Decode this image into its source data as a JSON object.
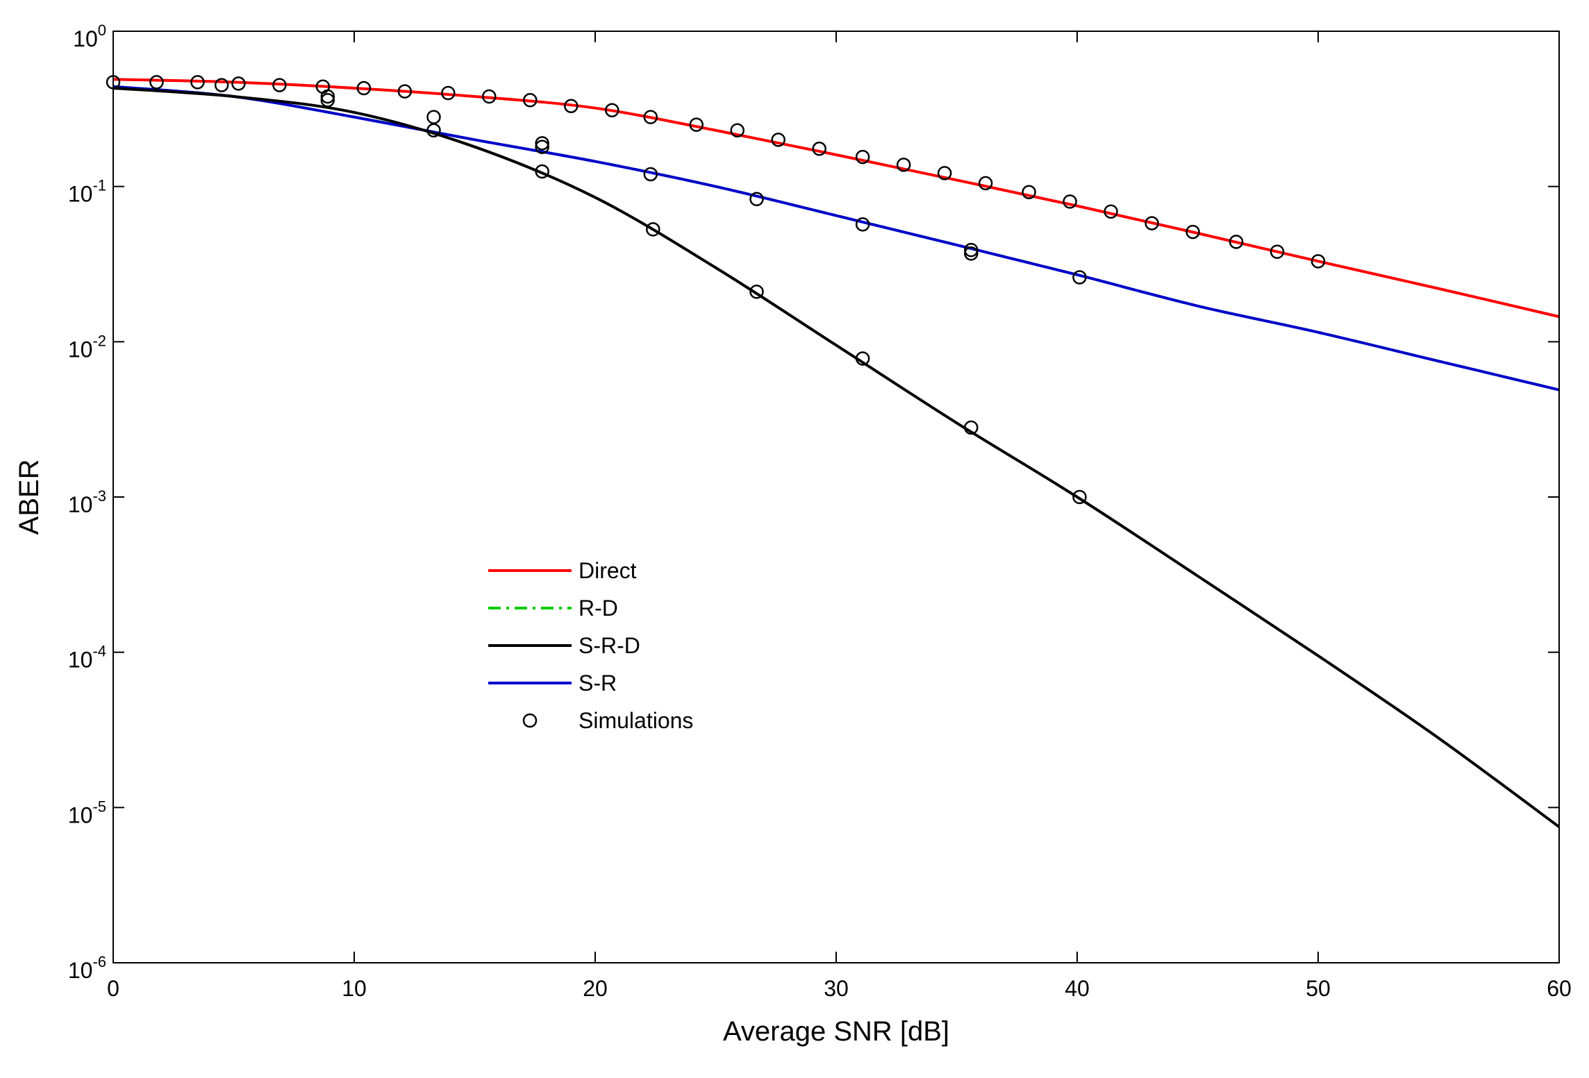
{
  "chart_data": {
    "type": "line",
    "title": "",
    "xlabel": "Average SNR [dB]",
    "ylabel": "ABER",
    "xlim": [
      0,
      60
    ],
    "ylim": [
      1e-06,
      1
    ],
    "yscale": "log",
    "xticks": [
      0,
      10,
      20,
      30,
      40,
      50,
      60
    ],
    "yticks": [
      {
        "base": "10",
        "exp": "0",
        "value": 1
      },
      {
        "base": "10",
        "exp": "-1",
        "value": 0.1
      },
      {
        "base": "10",
        "exp": "-2",
        "value": 0.01
      },
      {
        "base": "10",
        "exp": "-3",
        "value": 0.001
      },
      {
        "base": "10",
        "exp": "-4",
        "value": 0.0001
      },
      {
        "base": "10",
        "exp": "-5",
        "value": 1e-05
      },
      {
        "base": "10",
        "exp": "-6",
        "value": 1e-06
      }
    ],
    "grid": false,
    "legend_position": "center-left",
    "series": [
      {
        "name": "Direct",
        "color": "#ff0000",
        "style": "solid",
        "x": [
          0,
          5,
          10,
          15,
          20,
          25,
          30,
          35,
          40,
          45,
          50,
          55,
          60
        ],
        "y": [
          0.49,
          0.47,
          0.43,
          0.38,
          0.32,
          0.23,
          0.16,
          0.11,
          0.075,
          0.05,
          0.033,
          0.022,
          0.0145
        ]
      },
      {
        "name": "R-D",
        "color": "#00cc00",
        "style": "dashdot",
        "x": [
          0,
          5,
          10,
          15,
          20,
          25,
          30,
          35,
          40,
          45,
          50,
          55,
          60
        ],
        "y": [
          0.44,
          0.38,
          0.28,
          0.2,
          0.145,
          0.1,
          0.065,
          0.042,
          0.027,
          0.017,
          0.0115,
          0.0075,
          0.0049
        ]
      },
      {
        "name": "S-R-D",
        "color": "#000000",
        "style": "solid",
        "x": [
          0,
          5,
          10,
          15,
          20,
          25,
          30,
          35,
          40,
          45,
          50,
          55,
          60
        ],
        "y": [
          0.43,
          0.38,
          0.3,
          0.18,
          0.085,
          0.03,
          0.0095,
          0.003,
          0.001,
          0.00031,
          9.5e-05,
          2.8e-05,
          7.5e-06
        ]
      },
      {
        "name": "S-R",
        "color": "#0000cc",
        "style": "solid",
        "x": [
          0,
          5,
          10,
          15,
          20,
          25,
          30,
          35,
          40,
          45,
          50,
          55,
          60
        ],
        "y": [
          0.44,
          0.38,
          0.28,
          0.2,
          0.145,
          0.1,
          0.065,
          0.042,
          0.027,
          0.017,
          0.0115,
          0.0075,
          0.0049
        ]
      }
    ],
    "simulations": {
      "name": "Simulations",
      "x": [
        0,
        1.8,
        3.5,
        4.5,
        5.2,
        6.9,
        8.7,
        8.9,
        8.9,
        10.4,
        12.1,
        13.3,
        13.3,
        13.9,
        15.6,
        17.3,
        17.8,
        17.8,
        17.8,
        19,
        20.7,
        22.3,
        22.3,
        22.4,
        24.2,
        25.9,
        26.7,
        26.7,
        27.6,
        29.3,
        31.1,
        31.1,
        31.1,
        32.8,
        34.5,
        35.6,
        35.6,
        35.6,
        36.2,
        38,
        39.7,
        40.1,
        40.1,
        41.4,
        43.1,
        44.8,
        46.6,
        48.3,
        50
      ],
      "y": [
        0.47,
        0.47,
        0.47,
        0.45,
        0.46,
        0.45,
        0.44,
        0.38,
        0.36,
        0.43,
        0.41,
        0.28,
        0.23,
        0.4,
        0.38,
        0.36,
        0.19,
        0.18,
        0.125,
        0.33,
        0.31,
        0.28,
        0.12,
        0.053,
        0.25,
        0.23,
        0.083,
        0.021,
        0.2,
        0.175,
        0.155,
        0.057,
        0.0078,
        0.138,
        0.122,
        0.039,
        0.037,
        0.0028,
        0.105,
        0.092,
        0.08,
        0.026,
        0.001,
        0.069,
        0.058,
        0.051,
        0.044,
        0.038,
        0.033
      ]
    }
  }
}
